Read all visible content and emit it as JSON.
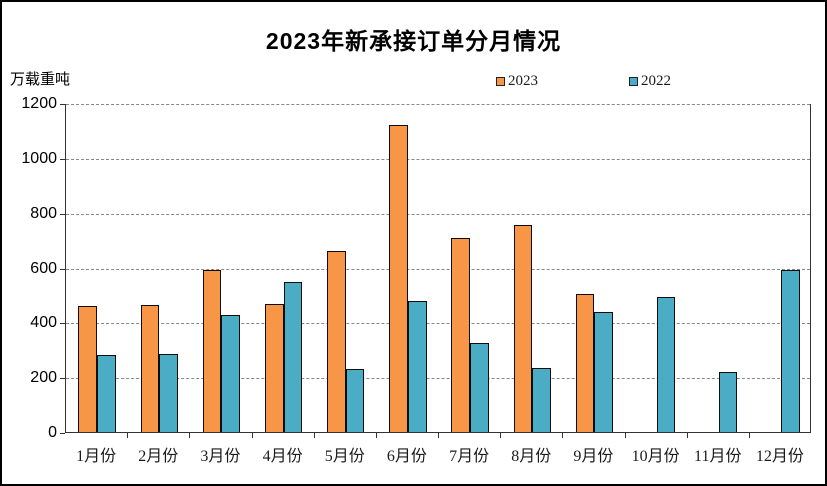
{
  "page": {
    "background": "#ffffff",
    "frame_border_color": "#000000"
  },
  "chart_data": {
    "type": "bar",
    "title": "2023年新承接订单分月情况",
    "unit_label": "万载重吨",
    "xlabel": "",
    "ylabel": "万载重吨",
    "categories": [
      "1月份",
      "2月份",
      "3月份",
      "4月份",
      "5月份",
      "6月份",
      "7月份",
      "8月份",
      "9月份",
      "10月份",
      "11月份",
      "12月份"
    ],
    "series": [
      {
        "name": "2023",
        "color": "#F79646",
        "values": [
          459,
          465,
          591,
          466,
          661,
          1121,
          708,
          756,
          502,
          null,
          null,
          null
        ]
      },
      {
        "name": "2022",
        "color": "#4BACC6",
        "values": [
          282,
          283,
          427,
          548,
          229,
          477,
          326,
          233,
          439,
          493,
          218,
          591
        ]
      }
    ],
    "ylim": [
      0,
      1200
    ],
    "yticks": [
      0,
      200,
      400,
      600,
      800,
      1000,
      1200
    ],
    "grid": "horizontal-dashed",
    "legend_position": "top-center",
    "bar_border_color": "#0d0d0d",
    "gridline_color": "#888888",
    "axis_color": "#333333"
  }
}
